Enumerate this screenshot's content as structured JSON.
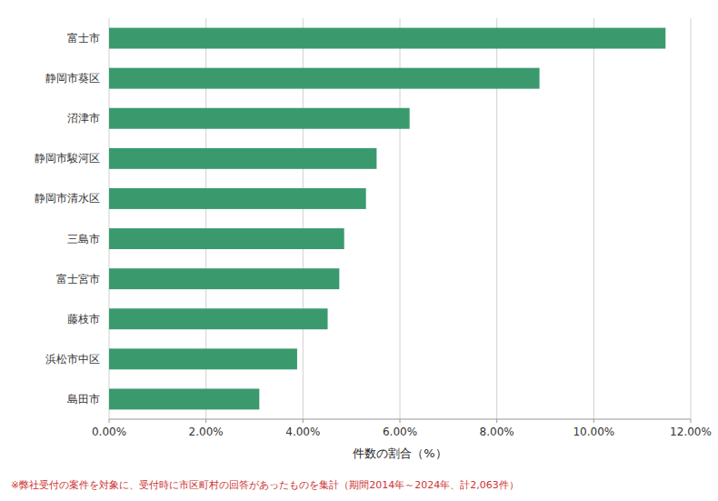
{
  "chart_data": {
    "type": "bar",
    "orientation": "horizontal",
    "categories": [
      "島田市",
      "浜松市中区",
      "藤枝市",
      "富士宮市",
      "三島市",
      "静岡市清水区",
      "静岡市駿河区",
      "沼津市",
      "静岡市葵区",
      "富士市"
    ],
    "values": [
      3.1,
      3.88,
      4.51,
      4.75,
      4.85,
      5.3,
      5.52,
      6.2,
      8.88,
      11.48
    ],
    "color": "#3a9a6e",
    "xlabel": "件数の割合（%）",
    "xlim": [
      0,
      12.0
    ],
    "xticks": [
      {
        "value": 0,
        "label": "0.00%"
      },
      {
        "value": 2,
        "label": "2.00%"
      },
      {
        "value": 4,
        "label": "4.00%"
      },
      {
        "value": 6,
        "label": "6.00%"
      },
      {
        "value": 8,
        "label": "8.00%"
      },
      {
        "value": 10,
        "label": "10.00%"
      },
      {
        "value": 12,
        "label": "12.00%"
      }
    ],
    "grid": true,
    "annotations": [
      {
        "text": "※弊社受付の案件を対象に、受付時に市区町村の回答があったものを集計（期間2014年～2024年、計2,063件）",
        "color": "#cc3333"
      }
    ]
  }
}
